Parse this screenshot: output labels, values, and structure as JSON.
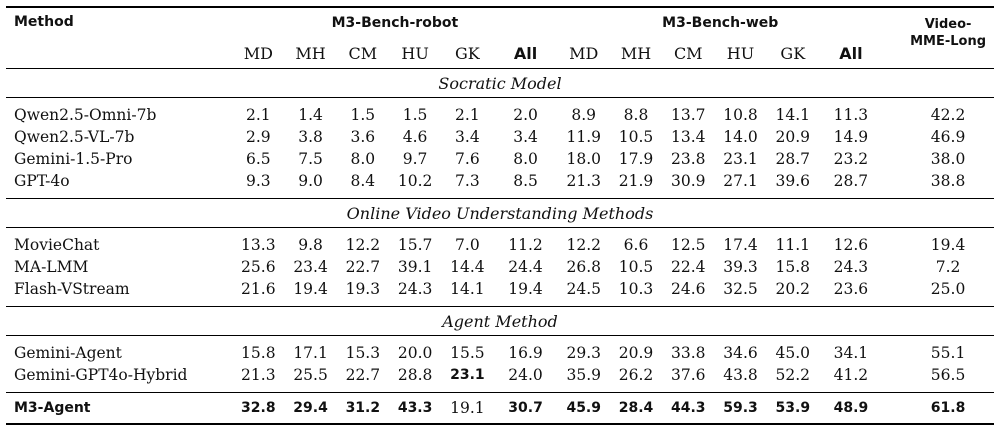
{
  "header": {
    "method": "Method",
    "robot_group": "M3-Bench-robot",
    "web_group": "M3-Bench-web",
    "video_mme_line1": "Video-",
    "video_mme_line2": "MME-Long",
    "subcols": [
      "MD",
      "MH",
      "CM",
      "HU",
      "GK",
      "All"
    ]
  },
  "sections": [
    {
      "title": "Socratic Model",
      "rows": [
        {
          "method": "Qwen2.5-Omni-7b",
          "robot": [
            "2.1",
            "1.4",
            "1.5",
            "1.5",
            "2.1",
            "2.0"
          ],
          "web": [
            "8.9",
            "8.8",
            "13.7",
            "10.8",
            "14.1",
            "11.3"
          ],
          "mme": "42.2"
        },
        {
          "method": "Qwen2.5-VL-7b",
          "robot": [
            "2.9",
            "3.8",
            "3.6",
            "4.6",
            "3.4",
            "3.4"
          ],
          "web": [
            "11.9",
            "10.5",
            "13.4",
            "14.0",
            "20.9",
            "14.9"
          ],
          "mme": "46.9"
        },
        {
          "method": "Gemini-1.5-Pro",
          "robot": [
            "6.5",
            "7.5",
            "8.0",
            "9.7",
            "7.6",
            "8.0"
          ],
          "web": [
            "18.0",
            "17.9",
            "23.8",
            "23.1",
            "28.7",
            "23.2"
          ],
          "mme": "38.0"
        },
        {
          "method": "GPT-4o",
          "robot": [
            "9.3",
            "9.0",
            "8.4",
            "10.2",
            "7.3",
            "8.5"
          ],
          "web": [
            "21.3",
            "21.9",
            "30.9",
            "27.1",
            "39.6",
            "28.7"
          ],
          "mme": "38.8"
        }
      ]
    },
    {
      "title": "Online Video Understanding Methods",
      "rows": [
        {
          "method": "MovieChat",
          "robot": [
            "13.3",
            "9.8",
            "12.2",
            "15.7",
            "7.0",
            "11.2"
          ],
          "web": [
            "12.2",
            "6.6",
            "12.5",
            "17.4",
            "11.1",
            "12.6"
          ],
          "mme": "19.4"
        },
        {
          "method": "MA-LMM",
          "robot": [
            "25.6",
            "23.4",
            "22.7",
            "39.1",
            "14.4",
            "24.4"
          ],
          "web": [
            "26.8",
            "10.5",
            "22.4",
            "39.3",
            "15.8",
            "24.3"
          ],
          "mme": "7.2"
        },
        {
          "method": "Flash-VStream",
          "robot": [
            "21.6",
            "19.4",
            "19.3",
            "24.3",
            "14.1",
            "19.4"
          ],
          "web": [
            "24.5",
            "10.3",
            "24.6",
            "32.5",
            "20.2",
            "23.6"
          ],
          "mme": "25.0"
        }
      ]
    },
    {
      "title": "Agent Method",
      "rows": [
        {
          "method": "Gemini-Agent",
          "robot": [
            "15.8",
            "17.1",
            "15.3",
            "20.0",
            "15.5",
            "16.9"
          ],
          "web": [
            "29.3",
            "20.9",
            "33.8",
            "34.6",
            "45.0",
            "34.1"
          ],
          "mme": "55.1"
        },
        {
          "method": "Gemini-GPT4o-Hybrid",
          "robot": [
            "21.3",
            "25.5",
            "22.7",
            "28.8",
            "23.1",
            "24.0"
          ],
          "web": [
            "35.9",
            "26.2",
            "37.6",
            "43.8",
            "52.2",
            "41.2"
          ],
          "mme": "56.5"
        }
      ]
    }
  ],
  "final": {
    "method": "M3-Agent",
    "robot": [
      "32.8",
      "29.4",
      "31.2",
      "43.3",
      "19.1",
      "30.7"
    ],
    "web": [
      "45.9",
      "28.4",
      "44.3",
      "59.3",
      "53.9",
      "48.9"
    ],
    "mme": "61.8"
  }
}
